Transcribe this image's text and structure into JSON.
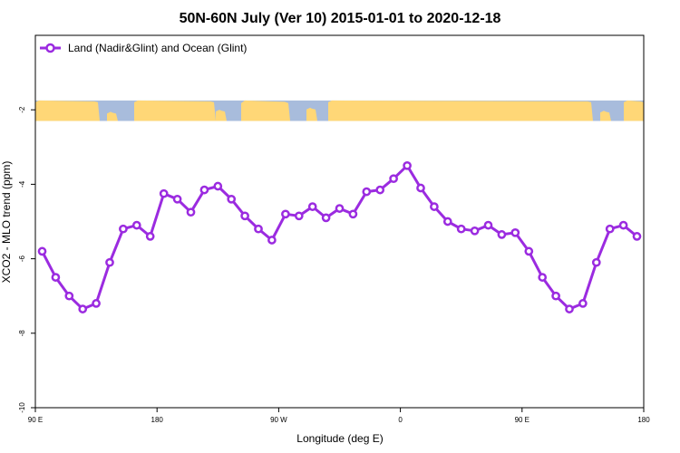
{
  "chart_data": {
    "type": "line",
    "title": "50N-60N July (Ver 10)   2015-01-01 to 2020-12-18",
    "xlabel": "Longitude (deg E)",
    "ylabel": "XCO2 - MLO trend (ppm)",
    "xlim": [
      90,
      540
    ],
    "ylim": [
      -10,
      0
    ],
    "x_ticks": [
      {
        "value": 90,
        "label": "90 E"
      },
      {
        "value": 180,
        "label": "180"
      },
      {
        "value": 270,
        "label": "90 W"
      },
      {
        "value": 360,
        "label": "0"
      },
      {
        "value": 450,
        "label": "90 E"
      },
      {
        "value": 540,
        "label": "180"
      }
    ],
    "y_ticks": [
      {
        "value": -2,
        "label": "-2"
      },
      {
        "value": -4,
        "label": "-4"
      },
      {
        "value": -6,
        "label": "-6"
      },
      {
        "value": -8,
        "label": "-8"
      },
      {
        "value": -10,
        "label": "-10"
      }
    ],
    "grid": false,
    "legend_position": "top-left",
    "map_band": {
      "y_from": -2.3,
      "y_to": -1.75,
      "land_color": "#FFD777",
      "ocean_color": "#A8BCDC"
    },
    "series": [
      {
        "name": "Land (Nadir&Glint) and Ocean (Glint)",
        "color": "#9B2BE0",
        "x": [
          95,
          105,
          115,
          125,
          135,
          145,
          155,
          165,
          175,
          185,
          195,
          205,
          215,
          225,
          235,
          245,
          255,
          265,
          275,
          285,
          295,
          305,
          315,
          325,
          335,
          345,
          355,
          365,
          375,
          385,
          395,
          405,
          415,
          425,
          435,
          445,
          455,
          465,
          475,
          485,
          495,
          505,
          515,
          525,
          535
        ],
        "values": [
          -5.8,
          -6.5,
          -7.0,
          -7.35,
          -7.2,
          -6.1,
          -5.2,
          -5.1,
          -5.4,
          -4.25,
          -4.4,
          -4.75,
          -4.15,
          -4.05,
          -4.4,
          -4.85,
          -5.2,
          -5.5,
          -4.8,
          -4.85,
          -4.6,
          -4.9,
          -4.65,
          -4.8,
          -4.2,
          -4.15,
          -3.85,
          -3.5,
          -4.1,
          -4.6,
          -5.0,
          -5.2,
          -5.25,
          -5.1,
          -5.35,
          -5.3,
          -5.8,
          -6.5,
          -7.0,
          -7.35,
          -7.2,
          -6.1,
          -5.2,
          -5.1,
          -5.4
        ]
      }
    ]
  }
}
